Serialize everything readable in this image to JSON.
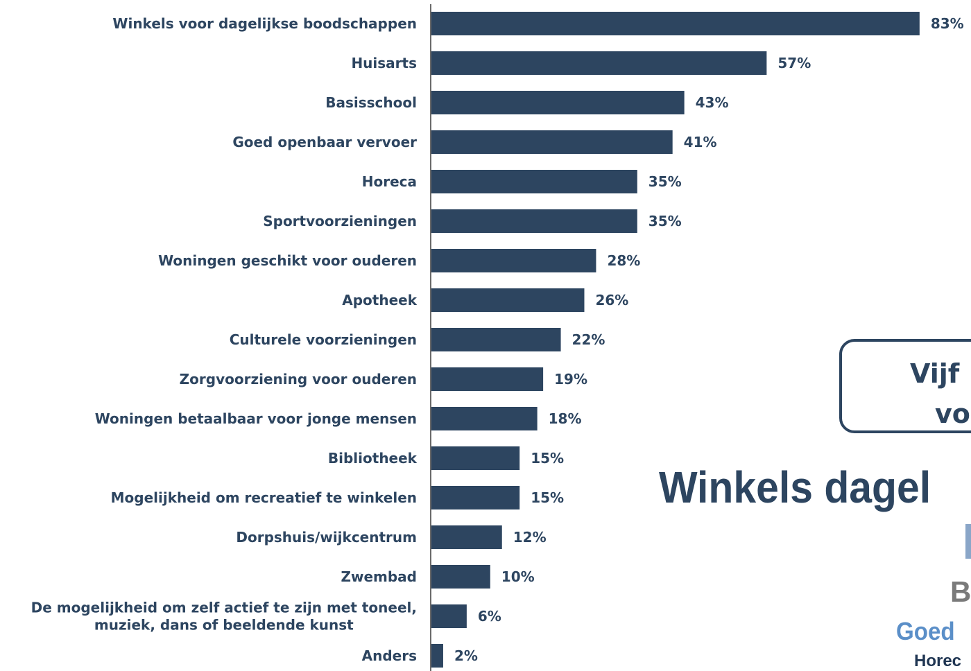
{
  "chart_data": {
    "type": "bar",
    "orientation": "horizontal",
    "categories": [
      "Winkels voor dagelijkse boodschappen",
      "Huisarts",
      "Basisschool",
      "Goed openbaar vervoer",
      "Horeca",
      "Sportvoorzieningen",
      "Woningen geschikt voor ouderen",
      "Apotheek",
      "Culturele voorzieningen",
      "Zorgvoorziening voor ouderen",
      "Woningen betaalbaar voor jonge mensen",
      "Bibliotheek",
      "Mogelijkheid om recreatief te winkelen",
      "Dorpshuis/wijkcentrum",
      "Zwembad",
      "De mogelijkheid om zelf actief te zijn met toneel, muziek, dans of beeldende kunst",
      "Anders"
    ],
    "values": [
      83,
      57,
      43,
      41,
      35,
      35,
      28,
      26,
      22,
      19,
      18,
      15,
      15,
      12,
      10,
      6,
      2
    ],
    "value_labels": [
      "83%",
      "57%",
      "43%",
      "41%",
      "35%",
      "35%",
      "28%",
      "26%",
      "22%",
      "19%",
      "18%",
      "15%",
      "15%",
      "12%",
      "10%",
      "6%",
      "2%"
    ],
    "label_lines": [
      [
        "Winkels voor dagelijkse boodschappen"
      ],
      [
        "Huisarts"
      ],
      [
        "Basisschool"
      ],
      [
        "Goed openbaar vervoer"
      ],
      [
        "Horeca"
      ],
      [
        "Sportvoorzieningen"
      ],
      [
        "Woningen geschikt voor ouderen"
      ],
      [
        "Apotheek"
      ],
      [
        "Culturele voorzieningen"
      ],
      [
        "Zorgvoorziening voor ouderen"
      ],
      [
        "Woningen betaalbaar voor jonge mensen"
      ],
      [
        "Bibliotheek"
      ],
      [
        "Mogelijkheid om recreatief te winkelen"
      ],
      [
        "Dorpshuis/wijkcentrum"
      ],
      [
        "Zwembad"
      ],
      [
        "De mogelijkheid om zelf actief te zijn met toneel,",
        "muziek, dans of beeldende kunst"
      ],
      [
        "Anders"
      ]
    ],
    "title": "",
    "xlabel": "",
    "ylabel": "",
    "xlim": [
      0,
      100
    ],
    "grid": false,
    "legend": "none",
    "bar_color": "#2d4560"
  },
  "callout": {
    "line1": "Vijf",
    "line2": "vo"
  },
  "word_cloud": {
    "word1": "Winkels dagel",
    "word3": "B",
    "word4": "Goed",
    "word5": "Horec"
  },
  "colors": {
    "primary": "#2d4560",
    "cloud_gray": "#7a7a7a",
    "cloud_light_blue": "#5b8fc8",
    "cloud_pale_blue": "#8aa6c8"
  }
}
